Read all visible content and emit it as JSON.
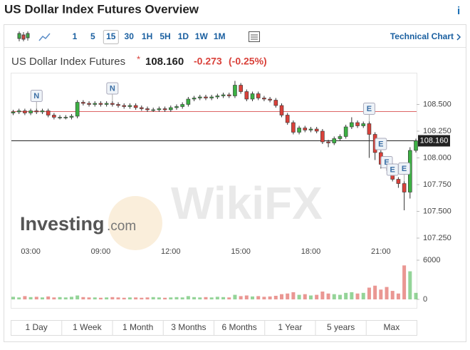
{
  "header": {
    "title": "US Dollar Index Futures Overview",
    "info": "i"
  },
  "toolbar": {
    "intervals": [
      "1",
      "5",
      "15",
      "30",
      "1H",
      "5H",
      "1D",
      "1W",
      "1M"
    ],
    "selected": "15",
    "link": "Technical Chart"
  },
  "quote": {
    "name": "US Dollar Index Futures",
    "marker": "*",
    "price": "108.160",
    "change": "-0.273",
    "change_pct": "(-0.25%)"
  },
  "watermarks": {
    "investing": "Investing",
    "investing_suffix": ".com",
    "wikifx": "WikiFX"
  },
  "ranges": [
    "1 Day",
    "1 Week",
    "1 Month",
    "3 Months",
    "6 Months",
    "1 Year",
    "5 years",
    "Max"
  ],
  "chart_data": {
    "type": "candlestick",
    "categories": [
      null,
      null,
      null,
      "03:00",
      null,
      null,
      null,
      null,
      null,
      null,
      null,
      null,
      null,
      null,
      null,
      "09:00",
      null,
      null,
      null,
      null,
      null,
      null,
      null,
      null,
      null,
      null,
      null,
      "12:00",
      null,
      null,
      null,
      null,
      null,
      null,
      null,
      null,
      null,
      null,
      null,
      "15:00",
      null,
      null,
      null,
      null,
      null,
      null,
      null,
      null,
      null,
      null,
      null,
      "18:00",
      null,
      null,
      null,
      null,
      null,
      null,
      null,
      null,
      null,
      null,
      null,
      "21:00",
      null,
      null,
      null,
      null,
      null,
      null
    ],
    "open": [
      108.42,
      108.43,
      108.44,
      108.42,
      108.44,
      108.43,
      108.44,
      108.4,
      108.38,
      108.38,
      108.38,
      108.39,
      108.52,
      108.51,
      108.5,
      108.51,
      108.5,
      108.51,
      108.5,
      108.49,
      108.48,
      108.49,
      108.47,
      108.46,
      108.45,
      108.45,
      108.46,
      108.45,
      108.47,
      108.48,
      108.5,
      108.55,
      108.56,
      108.57,
      108.56,
      108.57,
      108.58,
      108.59,
      108.58,
      108.68,
      108.62,
      108.55,
      108.6,
      108.56,
      108.55,
      108.54,
      108.49,
      108.4,
      108.33,
      108.24,
      108.28,
      108.26,
      108.27,
      108.25,
      108.15,
      108.14,
      108.18,
      108.2,
      108.29,
      108.33,
      108.3,
      108.32,
      108.22,
      108.05,
      107.94,
      107.93,
      107.8,
      107.76,
      107.68,
      108.07
    ],
    "high": [
      108.45,
      108.46,
      108.46,
      108.46,
      108.46,
      108.46,
      108.46,
      108.42,
      108.4,
      108.4,
      108.41,
      108.54,
      108.54,
      108.53,
      108.53,
      108.53,
      108.53,
      108.53,
      108.52,
      108.51,
      108.51,
      108.51,
      108.49,
      108.48,
      108.47,
      108.48,
      108.48,
      108.49,
      108.5,
      108.52,
      108.57,
      108.58,
      108.59,
      108.59,
      108.59,
      108.6,
      108.61,
      108.61,
      108.72,
      108.7,
      108.64,
      108.62,
      108.62,
      108.58,
      108.57,
      108.56,
      108.51,
      108.42,
      108.35,
      108.3,
      108.3,
      108.29,
      108.29,
      108.27,
      108.17,
      108.2,
      108.22,
      108.31,
      108.38,
      108.35,
      108.34,
      108.34,
      108.24,
      108.07,
      107.96,
      107.95,
      107.82,
      107.78,
      108.1,
      108.18
    ],
    "low": [
      108.4,
      108.41,
      108.4,
      108.4,
      108.41,
      108.41,
      108.38,
      108.36,
      108.36,
      108.36,
      108.36,
      108.37,
      108.49,
      108.48,
      108.48,
      108.48,
      108.48,
      108.48,
      108.47,
      108.46,
      108.46,
      108.45,
      108.44,
      108.43,
      108.43,
      108.43,
      108.43,
      108.43,
      108.45,
      108.46,
      108.48,
      108.53,
      108.54,
      108.54,
      108.54,
      108.55,
      108.56,
      108.56,
      108.56,
      108.6,
      108.53,
      108.53,
      108.54,
      108.53,
      108.52,
      108.47,
      108.38,
      108.31,
      108.22,
      108.22,
      108.24,
      108.24,
      108.23,
      108.13,
      108.1,
      108.12,
      108.16,
      108.18,
      108.27,
      108.28,
      108.28,
      108.0,
      107.98,
      107.9,
      107.88,
      107.78,
      107.72,
      107.51,
      107.62,
      108.05
    ],
    "close": [
      108.43,
      108.44,
      108.42,
      108.44,
      108.43,
      108.44,
      108.4,
      108.38,
      108.38,
      108.38,
      108.39,
      108.52,
      108.51,
      108.5,
      108.51,
      108.5,
      108.51,
      108.5,
      108.49,
      108.48,
      108.49,
      108.47,
      108.46,
      108.45,
      108.45,
      108.46,
      108.45,
      108.47,
      108.48,
      108.5,
      108.55,
      108.56,
      108.57,
      108.56,
      108.57,
      108.58,
      108.59,
      108.58,
      108.68,
      108.62,
      108.55,
      108.6,
      108.56,
      108.55,
      108.54,
      108.49,
      108.4,
      108.33,
      108.24,
      108.28,
      108.26,
      108.27,
      108.25,
      108.15,
      108.14,
      108.18,
      108.2,
      108.29,
      108.33,
      108.3,
      108.32,
      108.22,
      108.05,
      107.94,
      107.93,
      107.8,
      107.76,
      107.68,
      108.07,
      108.16
    ],
    "volume": [
      400,
      300,
      500,
      350,
      400,
      300,
      450,
      300,
      350,
      300,
      400,
      600,
      350,
      300,
      300,
      250,
      300,
      350,
      300,
      250,
      300,
      300,
      250,
      300,
      350,
      300,
      250,
      300,
      350,
      300,
      500,
      350,
      300,
      350,
      300,
      400,
      350,
      300,
      700,
      500,
      600,
      450,
      500,
      400,
      450,
      550,
      800,
      900,
      1100,
      700,
      800,
      600,
      700,
      1200,
      900,
      800,
      700,
      1000,
      1100,
      900,
      1000,
      1800,
      2100,
      1500,
      1900,
      1300,
      900,
      5200,
      4300,
      1000
    ],
    "up_color": "#3cb043",
    "down_color": "#d9413a",
    "ylim": [
      107.19,
      108.79
    ],
    "yticks": [
      {
        "value": 108.5,
        "label": "108.500"
      },
      {
        "value": 108.25,
        "label": "108.250"
      },
      {
        "value": 108.0,
        "label": "108.000"
      },
      {
        "value": 107.75,
        "label": "107.750"
      },
      {
        "value": 107.5,
        "label": "107.500"
      },
      {
        "value": 107.25,
        "label": "107.250"
      }
    ],
    "volume_lim": [
      0,
      6000
    ],
    "volume_ticks": [
      0,
      6000
    ],
    "reference_line": 108.433,
    "reference_color": "#d66",
    "last_price": {
      "value": 108.16,
      "label": "108.160"
    },
    "events": [
      {
        "label": "N",
        "at": 4
      },
      {
        "label": "N",
        "at": 17
      },
      {
        "label": "E",
        "at": 61
      },
      {
        "label": "E",
        "at": 63
      },
      {
        "label": "E",
        "at": 64
      },
      {
        "label": "E",
        "at": 65
      },
      {
        "label": "E",
        "at": 67
      }
    ]
  }
}
